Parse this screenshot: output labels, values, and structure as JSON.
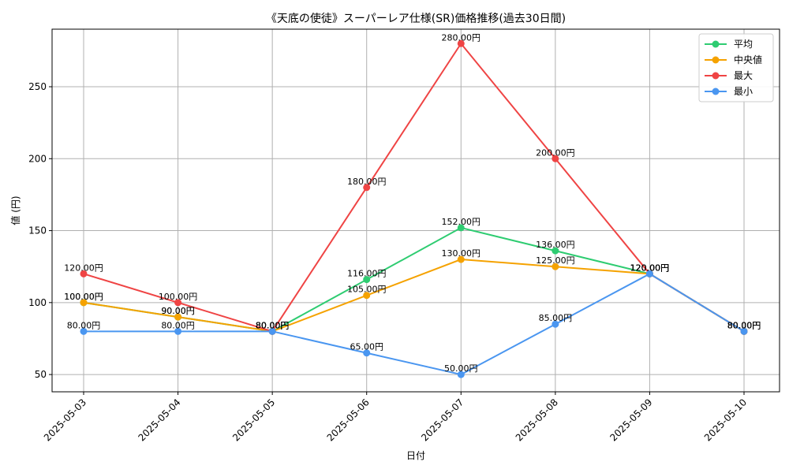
{
  "chart_data": {
    "type": "line",
    "title": "《天底の使徒》スーパーレア仕様(SR)価格推移(過去30日間)",
    "xlabel": "日付",
    "ylabel": "値 (円)",
    "categories": [
      "2025-05-03",
      "2025-05-04",
      "2025-05-05",
      "2025-05-06",
      "2025-05-07",
      "2025-05-08",
      "2025-05-09",
      "2025-05-10"
    ],
    "yticks": [
      50,
      100,
      150,
      200,
      250
    ],
    "ylim": [
      38,
      290
    ],
    "grid": true,
    "legend_position": "top-right",
    "value_suffix": "円",
    "series": [
      {
        "name": "平均",
        "color": "#2ecc71",
        "values": [
          100,
          90,
          80,
          116,
          152,
          136,
          120,
          80
        ]
      },
      {
        "name": "中央値",
        "color": "#f5a200",
        "values": [
          100,
          90,
          80,
          105,
          130,
          125,
          120,
          80
        ]
      },
      {
        "name": "最大",
        "color": "#ef4444",
        "values": [
          120,
          100,
          80,
          180,
          280,
          200,
          120,
          80
        ]
      },
      {
        "name": "最小",
        "color": "#4a96f0",
        "values": [
          80,
          80,
          80,
          65,
          50,
          85,
          120,
          80
        ]
      }
    ]
  }
}
